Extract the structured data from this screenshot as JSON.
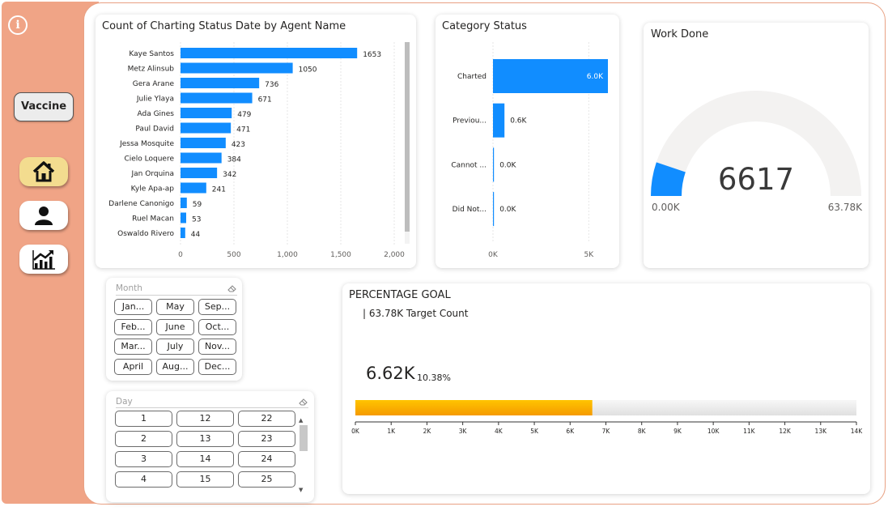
{
  "sidebar": {
    "info_icon": "info-icon",
    "vaccine_label": "Vaccine",
    "nav": [
      {
        "name": "home",
        "icon": "home-icon",
        "active": true
      },
      {
        "name": "user",
        "icon": "user-icon",
        "active": false
      },
      {
        "name": "trend",
        "icon": "trend-chart-icon",
        "active": false
      }
    ]
  },
  "agent_chart": {
    "type": "bar",
    "orientation": "horizontal",
    "title": "Count of Charting Status Date by Agent Name",
    "categories": [
      "Kaye Santos",
      "Metz Alinsub",
      "Gera Arane",
      "Julie Ylaya",
      "Ada Gines",
      "Paul David",
      "Jessa Mosquite",
      "Cielo Loquere",
      "Jan Orquina",
      "Kyle Apa-ap",
      "Darlene Canonigo",
      "Ruel Macan",
      "Oswaldo Rivero"
    ],
    "values": [
      1653,
      1050,
      736,
      671,
      479,
      471,
      423,
      384,
      342,
      241,
      59,
      53,
      44
    ],
    "value_labels": [
      "1653",
      "1050",
      "736",
      "671",
      "479",
      "471",
      "423",
      "384",
      "342",
      "241",
      "59",
      "53",
      "44"
    ],
    "xlim": [
      0,
      2000
    ],
    "xticks": [
      0,
      500,
      1000,
      1500,
      2000
    ],
    "xtick_labels": [
      "0",
      "500",
      "1,000",
      "1,500",
      "2,000"
    ],
    "bar_color": "#118dff",
    "grid": true,
    "scrollbar": true
  },
  "status_chart": {
    "type": "bar",
    "orientation": "horizontal",
    "title": "Category Status",
    "categories": [
      "Charted",
      "Previou...",
      "Cannot ...",
      "Did Not..."
    ],
    "values": [
      6000,
      600,
      0,
      0
    ],
    "value_labels": [
      "6.0K",
      "0.6K",
      "0.0K",
      "0.0K"
    ],
    "xlim": [
      0,
      6000
    ],
    "xticks": [
      0,
      5000
    ],
    "xtick_labels": [
      "0K",
      "5K"
    ],
    "bar_color": "#118dff",
    "grid": true
  },
  "work_done": {
    "type": "gauge",
    "title": "Work Done",
    "value": 6617,
    "value_label": "6617",
    "min": 0,
    "max": 63780,
    "min_label": "0.00K",
    "max_label": "63.78K",
    "fill_color": "#118dff",
    "track_color": "#f3f2f1"
  },
  "month_slicer": {
    "header": "Month",
    "eraser_icon": "eraser-icon",
    "options": [
      "Jan...",
      "May",
      "Sep...",
      "Feb...",
      "June",
      "Oct...",
      "Mar...",
      "July",
      "Nov...",
      "April",
      "Aug...",
      "Dec..."
    ]
  },
  "day_slicer": {
    "header": "Day",
    "eraser_icon": "eraser-icon",
    "options": [
      "1",
      "12",
      "22",
      "2",
      "13",
      "23",
      "3",
      "14",
      "24",
      "4",
      "15",
      "25"
    ]
  },
  "goal": {
    "type": "bar",
    "title": "PERCENTAGE GOAL",
    "target_label": "| 63.78K Target Count",
    "value": 6620,
    "value_label": "6.62K",
    "percent_label": "10.38%",
    "xlim": [
      0,
      14000
    ],
    "xticks": [
      0,
      1000,
      2000,
      3000,
      4000,
      5000,
      6000,
      7000,
      8000,
      9000,
      10000,
      11000,
      12000,
      13000,
      14000
    ],
    "xtick_labels": [
      "0K",
      "1K",
      "2K",
      "3K",
      "4K",
      "5K",
      "6K",
      "7K",
      "8K",
      "9K",
      "10K",
      "11K",
      "12K",
      "13K",
      "14K"
    ],
    "fill_color": "#f7b500",
    "track_color": "#ededed"
  }
}
